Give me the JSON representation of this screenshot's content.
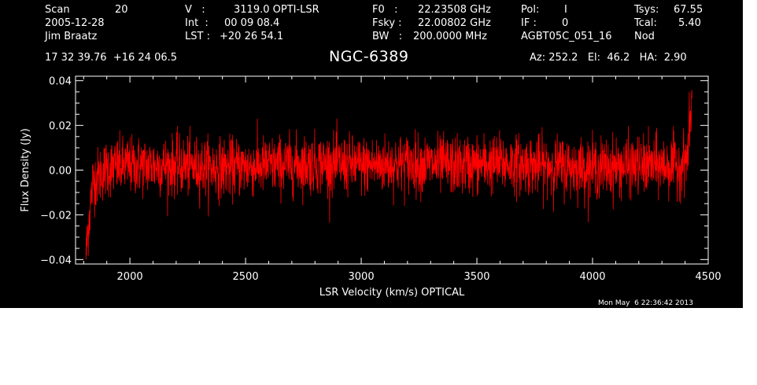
{
  "header": {
    "scan_label": "Scan",
    "scan_value": "20",
    "date": "2005-12-28",
    "observer": "Jim Braatz",
    "v_label": "V   :",
    "v_value": "3119.0 OPTI-LSR",
    "int_label": "Int  :",
    "int_value": "00 09 08.4",
    "lst_label": "LST :",
    "lst_value": "+20 26 54.1",
    "f0_label": "F0   :",
    "f0_value": "22.23508 GHz",
    "fsky_label": "Fsky :",
    "fsky_value": "22.00802 GHz",
    "bw_label": "BW   :",
    "bw_value": "200.0000 MHz",
    "pol_label": "Pol:",
    "pol_value": "I",
    "if_label": "IF :",
    "if_value": "0",
    "session": "AGBT05C_051_16",
    "tsys_label": "Tsys:",
    "tsys_value": "67.55",
    "tcal_label": "Tcal:",
    "tcal_value": "5.40",
    "mode": "Nod",
    "coords": "17 32 39.76  +16 24 06.5",
    "source": "NGC-6389",
    "az_el_ha": "Az: 252.2   El:  46.2   HA:  2.90"
  },
  "footer": {
    "timestamp": "Mon May  6 22:36:42 2013"
  },
  "colors": {
    "background": "#000000",
    "axes": "#ffffff",
    "trace": "#ff0000"
  },
  "chart_data": {
    "type": "line",
    "xlabel": "LSR Velocity (km/s) OPTICAL",
    "ylabel": "Flux Density (Jy)",
    "xlim": [
      1765,
      4500
    ],
    "ylim": [
      -0.042,
      0.042
    ],
    "xticks": [
      2000,
      2500,
      3000,
      3500,
      4000,
      4500
    ],
    "yticks": [
      -0.04,
      -0.02,
      0.0,
      0.02,
      0.04
    ],
    "ytick_labels": [
      "−0.04",
      "−0.02",
      "0.00",
      "0.02",
      "0.04"
    ],
    "series": [
      {
        "color": "#ff0000",
        "x_range": [
          1810,
          4430
        ],
        "noise_rms": 0.0065,
        "mean": 0.002,
        "x": [
          1810,
          1820,
          1840,
          1900,
          2000,
          2200,
          2400,
          2600,
          2800,
          3000,
          3200,
          3400,
          3600,
          3800,
          4000,
          4200,
          4380,
          4410,
          4425,
          4430
        ],
        "y": [
          -0.038,
          -0.025,
          -0.005,
          0.001,
          0.002,
          0.002,
          0.001,
          0.002,
          0.003,
          0.002,
          0.003,
          0.002,
          0.003,
          0.002,
          0.001,
          0.002,
          0.002,
          0.006,
          0.025,
          0.032
        ]
      }
    ]
  }
}
